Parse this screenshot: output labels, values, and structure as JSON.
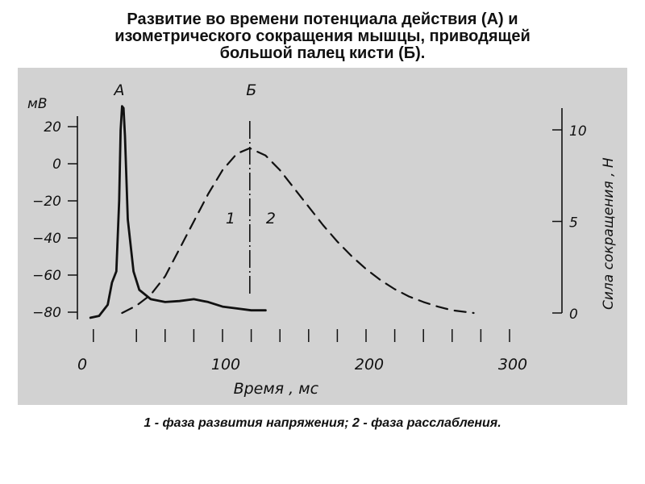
{
  "title_lines": [
    "Развитие во времени потенциала действия (А) и",
    "изометрического сокращения мышцы, приводящей",
    "большой палец кисти (Б)."
  ],
  "caption": "1 - фаза развития напряжения; 2 -  фаза расслабления.",
  "chart_data": {
    "type": "line",
    "xlabel": "Время , мс",
    "x_ticks": [
      0,
      100,
      200,
      300
    ],
    "xlim": [
      0,
      320
    ],
    "left_axis": {
      "label": "мВ",
      "ticks": [
        20,
        0,
        -20,
        -40,
        -60,
        -80
      ],
      "ylim": [
        -85,
        30
      ]
    },
    "right_axis": {
      "label": "Сила  сокращения , Н",
      "ticks": [
        10,
        5,
        0
      ],
      "ylim": [
        0,
        11
      ]
    },
    "curve_labels": [
      "А",
      "Б"
    ],
    "phase_labels": [
      "1",
      "2"
    ],
    "peak_marker_x": 119,
    "series": [
      {
        "axis": "left",
        "style": "solid",
        "x": [
          8,
          14,
          20,
          23,
          26,
          28,
          29,
          30,
          31,
          32,
          34,
          38,
          42,
          50,
          60,
          70,
          80,
          90,
          100,
          110,
          120,
          130
        ],
        "values": [
          -83,
          -82,
          -76,
          -64,
          -58,
          -20,
          18,
          31,
          30,
          15,
          -30,
          -58,
          -68,
          -73,
          -74.5,
          -74,
          -73,
          -74.5,
          -77,
          -78,
          -79,
          -79
        ]
      },
      {
        "axis": "right",
        "style": "dashed",
        "x": [
          30,
          40,
          50,
          60,
          70,
          80,
          90,
          100,
          110,
          119,
          130,
          140,
          150,
          160,
          170,
          180,
          190,
          200,
          210,
          220,
          230,
          240,
          250,
          260,
          275
        ],
        "values": [
          0,
          0.4,
          1.0,
          2.0,
          3.5,
          5.0,
          6.5,
          7.8,
          8.7,
          9.0,
          8.6,
          7.8,
          6.8,
          5.8,
          4.8,
          3.9,
          3.1,
          2.4,
          1.8,
          1.3,
          0.9,
          0.6,
          0.35,
          0.15,
          0
        ]
      }
    ]
  }
}
